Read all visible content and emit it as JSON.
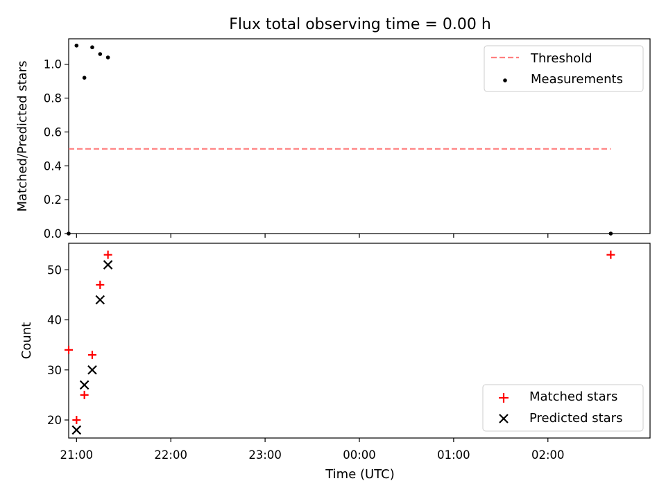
{
  "title": "Flux total observing time = 0.00 h",
  "chart_data": [
    {
      "type": "scatter",
      "ylabel": "Matched/Predicted stars",
      "xlabel": "",
      "ylim": [
        0,
        1.15
      ],
      "yticks": [
        "0.0",
        "0.2",
        "0.4",
        "0.6",
        "0.8",
        "1.0"
      ],
      "xlim": [
        "20:55",
        "03:05"
      ],
      "threshold": {
        "name": "Threshold",
        "value": 0.5,
        "x": [
          "20:55",
          "02:40"
        ],
        "color": "#ff7f7f",
        "style": "dashed"
      },
      "series": [
        {
          "name": "Measurements",
          "marker": "dot",
          "color": "#000000",
          "points": [
            {
              "x": "20:55",
              "y": 0.0
            },
            {
              "x": "21:00",
              "y": 1.11
            },
            {
              "x": "21:05",
              "y": 0.92
            },
            {
              "x": "21:10",
              "y": 1.1
            },
            {
              "x": "21:15",
              "y": 1.06
            },
            {
              "x": "21:20",
              "y": 1.04
            },
            {
              "x": "02:40",
              "y": 0.0
            }
          ]
        }
      ],
      "legend": "top-right"
    },
    {
      "type": "scatter",
      "ylabel": "Count",
      "xlabel": "Time (UTC)",
      "ylim": [
        16.4,
        55.3
      ],
      "yticks": [
        "20",
        "30",
        "40",
        "50"
      ],
      "xlim": [
        "20:55",
        "03:05"
      ],
      "xticks": [
        "21:00",
        "22:00",
        "23:00",
        "00:00",
        "01:00",
        "02:00"
      ],
      "series": [
        {
          "name": "Matched stars",
          "marker": "plus",
          "color": "#ff0000",
          "points": [
            {
              "x": "20:55",
              "y": 34
            },
            {
              "x": "21:00",
              "y": 20
            },
            {
              "x": "21:05",
              "y": 25
            },
            {
              "x": "21:10",
              "y": 33
            },
            {
              "x": "21:15",
              "y": 47
            },
            {
              "x": "21:20",
              "y": 53
            },
            {
              "x": "02:40",
              "y": 53
            }
          ]
        },
        {
          "name": "Predicted stars",
          "marker": "x",
          "color": "#000000",
          "points": [
            {
              "x": "21:00",
              "y": 18
            },
            {
              "x": "21:05",
              "y": 27
            },
            {
              "x": "21:10",
              "y": 30
            },
            {
              "x": "21:15",
              "y": 44
            },
            {
              "x": "21:20",
              "y": 51
            }
          ]
        }
      ],
      "legend": "bottom-right"
    }
  ]
}
